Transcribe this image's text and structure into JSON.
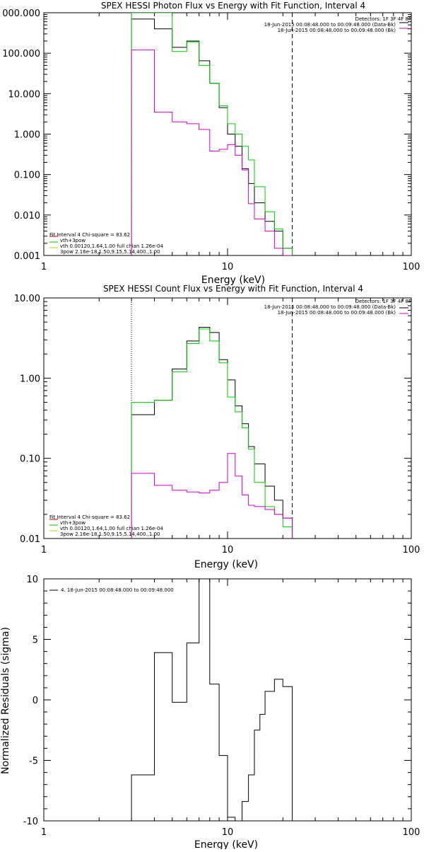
{
  "chart_data": [
    {
      "type": "line",
      "title": "SPEX HESSI Photon Flux vs Energy with Fit Function, Interval 4",
      "xlabel": "Energy (keV)",
      "ylabel": "",
      "x_scale": "log",
      "y_scale": "log",
      "xlim": [
        1,
        100
      ],
      "ylim": [
        0.001,
        1000
      ],
      "x_ticks": [
        "1",
        "10",
        "100"
      ],
      "y_ticks": [
        "000.000",
        "100.000",
        "10.000",
        "1.000",
        "0.100",
        "0.010",
        "0.001"
      ],
      "vlines": [
        {
          "x": 3,
          "style": "dotted"
        },
        {
          "x": 22.5,
          "style": "dashed"
        }
      ],
      "legend_top_right": [
        "Detectors: 1F 3F 4F 8F",
        "18-Jun-2015 00:08:48.000 to 00:09:48.000 (Data-Bk)",
        "18-Jun-2015 00:08:48.000 to 00:09:48.000 (Bk)"
      ],
      "legend_bottom_left": [
        "Fit Interval 4   Chi-square = 83.62",
        "vth+3pow",
        "vth 0.00120,1.64,1.00  full chian 1.26e-04",
        "3pow 2.16e-18,1.50,9.15,5.14,400.,1.00"
      ],
      "series": [
        {
          "name": "Data-Bk",
          "color": "#000000",
          "edges": [
            3,
            4,
            5,
            6,
            7,
            8,
            9,
            10,
            11,
            12,
            13,
            14,
            16,
            18,
            20,
            22.5
          ],
          "values": [
            700,
            400,
            140,
            200,
            65,
            18,
            4.5,
            1.0,
            0.5,
            0.14,
            0.06,
            0.02,
            0.007,
            0.004,
            0.0015
          ]
        },
        {
          "name": "vth+3pow",
          "color": "#00cc00",
          "edges": [
            3,
            4,
            5,
            6,
            7,
            8,
            9,
            10,
            11,
            12,
            13,
            14,
            16,
            18,
            20,
            22.5
          ],
          "values": [
            1000,
            1000,
            110,
            190,
            50,
            18,
            5.0,
            1.8,
            1.0,
            0.5,
            0.23,
            0.05,
            0.012,
            0.0045,
            0.0015
          ]
        },
        {
          "name": "Bk",
          "color": "#cc00cc",
          "edges": [
            3,
            4,
            5,
            6,
            7,
            8,
            9,
            10,
            11,
            12,
            13,
            14,
            16,
            18,
            20,
            22.5
          ],
          "values": [
            120,
            3.5,
            2.0,
            1.8,
            1.3,
            0.38,
            0.42,
            0.55,
            0.3,
            0.13,
            0.019,
            0.008,
            0.004,
            0.0015,
            0.001
          ]
        }
      ]
    },
    {
      "type": "line",
      "title": "SPEX HESSI Count Flux vs Energy with Fit Function, Interval 4",
      "xlabel": "Energy (keV)",
      "ylabel": "",
      "x_scale": "log",
      "y_scale": "log",
      "xlim": [
        1,
        100
      ],
      "ylim": [
        0.01,
        10
      ],
      "x_ticks": [
        "1",
        "10",
        "100"
      ],
      "y_ticks": [
        "10.00",
        "1.00",
        "0.10",
        "0.01"
      ],
      "vlines": [
        {
          "x": 3,
          "style": "dotted"
        },
        {
          "x": 22.5,
          "style": "dashed"
        }
      ],
      "legend_top_right": [
        "Detectors: 1F 3F 4F 8F",
        "18-Jun-2015 00:08:48.000 to 00:09:48.000 (Data-Bk)",
        "18-Jun-2015 00:08:48.000 to 00:09:48.000 (Bk)"
      ],
      "legend_bottom_left": [
        "Fit Interval 4   Chi-square = 83.62",
        "vth+3pow",
        "vth 0.00120,1.64,1.00  full chian 1.26e-04",
        "3pow 2.16e-18,1.50,9.15,5.14,400.,1.00"
      ],
      "series": [
        {
          "name": "Data-Bk",
          "color": "#000000",
          "edges": [
            3,
            4,
            5,
            6,
            7,
            8,
            9,
            10,
            11,
            12,
            13,
            14,
            16,
            18,
            20,
            22.5
          ],
          "values": [
            0.35,
            0.53,
            1.3,
            2.9,
            4.3,
            3.7,
            1.7,
            0.95,
            0.45,
            0.27,
            0.14,
            0.085,
            0.045,
            0.03,
            0.018
          ]
        },
        {
          "name": "vth+3pow",
          "color": "#00cc00",
          "edges": [
            3,
            4,
            5,
            6,
            7,
            8,
            9,
            10,
            11,
            12,
            13,
            14,
            16,
            18,
            20,
            22.5
          ],
          "values": [
            0.5,
            0.53,
            1.2,
            2.7,
            4.1,
            2.9,
            1.55,
            0.58,
            0.38,
            0.24,
            0.13,
            0.05,
            0.025,
            0.02,
            0.014
          ]
        },
        {
          "name": "Bk",
          "color": "#cc00cc",
          "edges": [
            3,
            4,
            5,
            6,
            7,
            8,
            9,
            10,
            11,
            12,
            13,
            14,
            16,
            18,
            20,
            22.5
          ],
          "values": [
            0.065,
            0.046,
            0.04,
            0.038,
            0.037,
            0.04,
            0.05,
            0.115,
            0.06,
            0.035,
            0.026,
            0.025,
            0.023,
            0.02,
            0.018
          ]
        }
      ]
    },
    {
      "type": "line",
      "title": "",
      "xlabel": "Energy (keV)",
      "ylabel": "Normalized Residuals (sigma)",
      "x_scale": "log",
      "y_scale": "linear",
      "xlim": [
        1,
        100
      ],
      "ylim": [
        -10,
        10
      ],
      "x_ticks": [
        "1",
        "10",
        "100"
      ],
      "y_ticks": [
        "10",
        "5",
        "0",
        "-5",
        "-10"
      ],
      "legend_top_left": "4. 18-Jun-2015 00:08:48.000 to 00:09:48.000",
      "series": [
        {
          "name": "4. 18-Jun-2015 00:08:48.000 to 00:09:48.000",
          "color": "#000000",
          "edges": [
            3,
            3.5,
            4,
            5,
            5.5,
            6,
            6.5,
            7,
            8,
            9,
            10,
            11,
            12,
            13,
            14,
            15,
            16,
            18,
            20,
            22.5
          ],
          "values": [
            -6.2,
            -6.2,
            3.9,
            -0.2,
            -0.2,
            4.7,
            4.7,
            10,
            1.3,
            -4.6,
            -9.7,
            -10,
            -8.4,
            -6.2,
            -2.5,
            -1.2,
            0.7,
            1.7,
            1.1
          ]
        }
      ]
    }
  ]
}
